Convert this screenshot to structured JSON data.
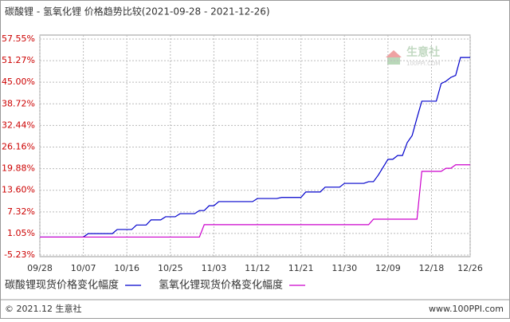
{
  "chart_data": {
    "type": "line",
    "title": "碳酸锂 - 氢氧化锂 价格趋势比较(2021-09-28 - 2021-12-26)",
    "categories": [
      "09/28",
      null,
      null,
      null,
      null,
      null,
      null,
      null,
      null,
      "10/07",
      null,
      null,
      null,
      null,
      null,
      null,
      null,
      null,
      "10/16",
      null,
      null,
      null,
      null,
      null,
      null,
      null,
      null,
      "10/25",
      null,
      null,
      null,
      null,
      null,
      null,
      null,
      null,
      "11/03",
      null,
      null,
      null,
      null,
      null,
      null,
      null,
      null,
      "11/12",
      null,
      null,
      null,
      null,
      null,
      null,
      null,
      null,
      "11/21",
      null,
      null,
      null,
      null,
      null,
      null,
      null,
      null,
      "11/30",
      null,
      null,
      null,
      null,
      null,
      null,
      null,
      null,
      "12/09",
      null,
      null,
      null,
      null,
      null,
      null,
      null,
      null,
      "12/18",
      null,
      null,
      null,
      null,
      null,
      null,
      null,
      "12/26"
    ],
    "series": [
      {
        "name": "碳酸锂现货价格变化幅度",
        "color": "#0000cc",
        "values": [
          0,
          0,
          0,
          0,
          0,
          0,
          0,
          0,
          0,
          0,
          1.0,
          1.0,
          1.0,
          1.0,
          1.0,
          1.0,
          2.2,
          2.2,
          2.2,
          2.2,
          3.5,
          3.5,
          3.5,
          5.0,
          5.0,
          5.0,
          5.9,
          5.9,
          5.9,
          6.8,
          6.8,
          6.8,
          6.8,
          7.7,
          7.7,
          9.1,
          9.1,
          10.3,
          10.3,
          10.3,
          10.3,
          10.3,
          10.3,
          10.3,
          10.3,
          11.2,
          11.2,
          11.2,
          11.2,
          11.2,
          11.5,
          11.5,
          11.5,
          11.5,
          11.5,
          13.1,
          13.1,
          13.1,
          13.1,
          14.5,
          14.5,
          14.5,
          14.5,
          15.6,
          15.6,
          15.6,
          15.6,
          15.6,
          16.1,
          16.1,
          18.0,
          20.3,
          22.6,
          22.6,
          23.7,
          23.7,
          27.5,
          29.5,
          34.6,
          39.5,
          39.5,
          39.5,
          39.5,
          44.6,
          45.3,
          46.4,
          47.0,
          52.2,
          52.2,
          52.2
        ]
      },
      {
        "name": "氢氧化锂现货价格变化幅度",
        "color": "#cc00cc",
        "values": [
          0,
          0,
          0,
          0,
          0,
          0,
          0,
          0,
          0,
          0,
          0,
          0,
          0,
          0,
          0,
          0,
          0,
          0,
          0,
          0,
          0,
          0,
          0,
          0,
          0,
          0,
          0,
          0,
          0,
          0,
          0,
          0,
          0,
          0,
          3.6,
          3.6,
          3.6,
          3.6,
          3.6,
          3.6,
          3.6,
          3.6,
          3.6,
          3.6,
          3.6,
          3.6,
          3.6,
          3.6,
          3.6,
          3.6,
          3.6,
          3.6,
          3.6,
          3.6,
          3.6,
          3.6,
          3.6,
          3.6,
          3.6,
          3.6,
          3.6,
          3.6,
          3.6,
          3.6,
          3.6,
          3.6,
          3.6,
          3.6,
          3.6,
          5.2,
          5.2,
          5.2,
          5.2,
          5.2,
          5.2,
          5.2,
          5.2,
          5.2,
          5.2,
          19.1,
          19.1,
          19.1,
          19.1,
          19.1,
          20.0,
          20.0,
          21.0,
          21.0,
          21.0,
          21.0
        ]
      }
    ],
    "ylim": [
      -5.23,
      57.55
    ],
    "yticks": [
      {
        "value": -5.23,
        "label": "-5.23%"
      },
      {
        "value": 1.05,
        "label": "1.05%"
      },
      {
        "value": 7.32,
        "label": "7.32%"
      },
      {
        "value": 13.6,
        "label": "13.60%"
      },
      {
        "value": 19.88,
        "label": "19.88%"
      },
      {
        "value": 26.16,
        "label": "26.16%"
      },
      {
        "value": 32.44,
        "label": "32.44%"
      },
      {
        "value": 38.72,
        "label": "38.72%"
      },
      {
        "value": 45.0,
        "label": "45.00%"
      },
      {
        "value": 51.27,
        "label": "51.27%"
      },
      {
        "value": 57.55,
        "label": "57.55%"
      }
    ],
    "grid": true,
    "watermark": {
      "brand": "生意社",
      "site": "100PPI.COM"
    },
    "footer": {
      "left": "© 2021.12 生意社",
      "right": "www.100PPI.com"
    }
  }
}
